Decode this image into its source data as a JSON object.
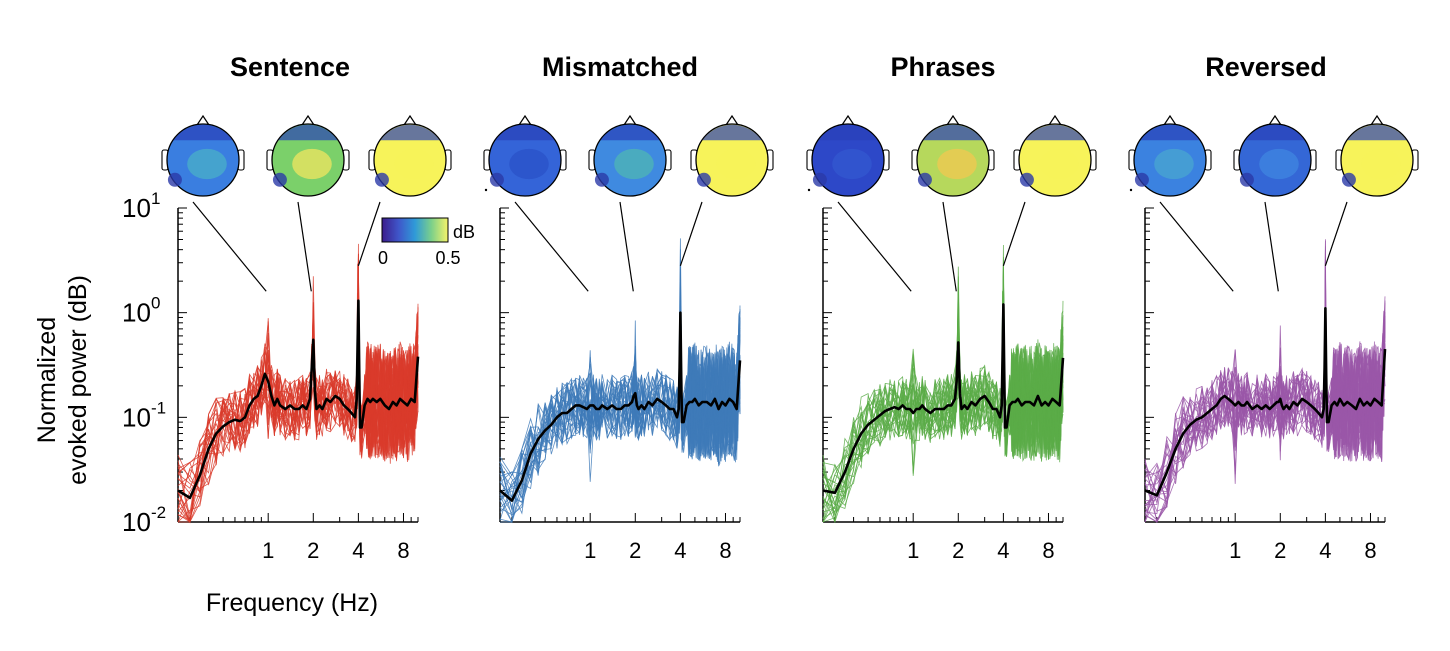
{
  "chart_data": {
    "type": "line",
    "ylabel_lines": [
      "Normalized",
      "evoked power (dB)"
    ],
    "xlabel": "Frequency (Hz)",
    "x_scale": "log",
    "y_scale": "log",
    "xlim": [
      0.25,
      10
    ],
    "ylim": [
      0.01,
      10
    ],
    "x_ticks": [
      1,
      2,
      4,
      8
    ],
    "x_tick_labels": [
      "1",
      "2",
      "4",
      "8"
    ],
    "y_ticks": [
      {
        "value": 10,
        "base": "10",
        "exp": "1"
      },
      {
        "value": 1,
        "base": "10",
        "exp": "0"
      },
      {
        "value": 0.1,
        "base": "10",
        "exp": "-1"
      },
      {
        "value": 0.01,
        "base": "10",
        "exp": "-2"
      }
    ],
    "colorbar": {
      "unit": "dB",
      "min_label": "0",
      "max_label": "0.5",
      "colormap": "viridis"
    },
    "topography_frequencies_hz": [
      1,
      2,
      4
    ],
    "panels": [
      {
        "title": "Sentence",
        "color": "#d93b2b",
        "mean_series": {
          "x": [
            0.25,
            0.3,
            0.35,
            0.4,
            0.45,
            0.5,
            0.55,
            0.6,
            0.65,
            0.7,
            0.75,
            0.8,
            0.85,
            0.9,
            0.95,
            1.0,
            1.05,
            1.1,
            1.15,
            1.2,
            1.3,
            1.4,
            1.5,
            1.6,
            1.7,
            1.8,
            1.9,
            1.95,
            2.0,
            2.05,
            2.1,
            2.2,
            2.3,
            2.45,
            2.6,
            2.8,
            3.0,
            3.2,
            3.4,
            3.6,
            3.8,
            3.9,
            3.95,
            4.0,
            4.05,
            4.1,
            4.2,
            4.4,
            4.6,
            4.8,
            5.0,
            5.3,
            5.6,
            6.0,
            6.4,
            6.8,
            7.2,
            7.6,
            8.0,
            8.5,
            9.0,
            9.5,
            10.0
          ],
          "y": [
            0.02,
            0.017,
            0.028,
            0.05,
            0.07,
            0.082,
            0.09,
            0.095,
            0.092,
            0.1,
            0.13,
            0.15,
            0.16,
            0.2,
            0.26,
            0.22,
            0.16,
            0.13,
            0.15,
            0.13,
            0.12,
            0.13,
            0.12,
            0.12,
            0.13,
            0.12,
            0.15,
            0.28,
            0.55,
            0.18,
            0.12,
            0.13,
            0.12,
            0.15,
            0.14,
            0.16,
            0.15,
            0.13,
            0.12,
            0.11,
            0.1,
            0.15,
            0.5,
            1.3,
            0.3,
            0.08,
            0.08,
            0.13,
            0.15,
            0.14,
            0.15,
            0.14,
            0.15,
            0.13,
            0.12,
            0.14,
            0.13,
            0.15,
            0.14,
            0.13,
            0.15,
            0.14,
            0.38
          ]
        }
      },
      {
        "title": "Mismatched",
        "color": "#3e7ab8",
        "mean_series": {
          "x": [
            0.25,
            0.3,
            0.35,
            0.4,
            0.45,
            0.5,
            0.55,
            0.6,
            0.65,
            0.7,
            0.75,
            0.8,
            0.85,
            0.9,
            0.95,
            1.0,
            1.05,
            1.1,
            1.15,
            1.2,
            1.3,
            1.4,
            1.5,
            1.6,
            1.7,
            1.8,
            1.9,
            1.95,
            2.0,
            2.05,
            2.1,
            2.2,
            2.3,
            2.45,
            2.6,
            2.8,
            3.0,
            3.2,
            3.4,
            3.6,
            3.8,
            3.9,
            3.95,
            4.0,
            4.05,
            4.1,
            4.2,
            4.4,
            4.6,
            4.8,
            5.0,
            5.3,
            5.6,
            6.0,
            6.4,
            6.8,
            7.2,
            7.6,
            8.0,
            8.5,
            9.0,
            9.5,
            10.0
          ],
          "y": [
            0.02,
            0.016,
            0.025,
            0.045,
            0.062,
            0.075,
            0.085,
            0.1,
            0.11,
            0.11,
            0.12,
            0.13,
            0.13,
            0.125,
            0.12,
            0.13,
            0.13,
            0.12,
            0.12,
            0.13,
            0.12,
            0.13,
            0.12,
            0.12,
            0.13,
            0.13,
            0.14,
            0.16,
            0.17,
            0.13,
            0.12,
            0.13,
            0.12,
            0.14,
            0.13,
            0.15,
            0.14,
            0.13,
            0.12,
            0.12,
            0.1,
            0.12,
            0.3,
            1.0,
            0.25,
            0.09,
            0.09,
            0.13,
            0.14,
            0.14,
            0.15,
            0.13,
            0.14,
            0.14,
            0.13,
            0.15,
            0.12,
            0.14,
            0.13,
            0.15,
            0.14,
            0.12,
            0.35
          ]
        }
      },
      {
        "title": "Phrases",
        "color": "#5aac48",
        "mean_series": {
          "x": [
            0.25,
            0.3,
            0.35,
            0.4,
            0.45,
            0.5,
            0.55,
            0.6,
            0.65,
            0.7,
            0.75,
            0.8,
            0.85,
            0.9,
            0.95,
            1.0,
            1.05,
            1.1,
            1.15,
            1.2,
            1.3,
            1.4,
            1.5,
            1.6,
            1.7,
            1.8,
            1.9,
            1.95,
            2.0,
            2.05,
            2.1,
            2.2,
            2.3,
            2.45,
            2.6,
            2.8,
            3.0,
            3.2,
            3.4,
            3.6,
            3.8,
            3.9,
            3.95,
            4.0,
            4.05,
            4.1,
            4.2,
            4.4,
            4.6,
            4.8,
            5.0,
            5.3,
            5.6,
            6.0,
            6.4,
            6.8,
            7.2,
            7.6,
            8.0,
            8.5,
            9.0,
            9.5,
            10.0
          ],
          "y": [
            0.02,
            0.019,
            0.03,
            0.05,
            0.07,
            0.085,
            0.095,
            0.105,
            0.115,
            0.12,
            0.125,
            0.12,
            0.13,
            0.12,
            0.12,
            0.11,
            0.12,
            0.12,
            0.13,
            0.12,
            0.11,
            0.12,
            0.12,
            0.12,
            0.13,
            0.13,
            0.15,
            0.22,
            0.52,
            0.17,
            0.12,
            0.13,
            0.12,
            0.14,
            0.13,
            0.15,
            0.16,
            0.14,
            0.12,
            0.12,
            0.1,
            0.13,
            0.4,
            1.2,
            0.28,
            0.08,
            0.08,
            0.13,
            0.14,
            0.14,
            0.15,
            0.13,
            0.14,
            0.14,
            0.13,
            0.16,
            0.13,
            0.14,
            0.13,
            0.15,
            0.14,
            0.13,
            0.37
          ]
        }
      },
      {
        "title": "Reversed",
        "color": "#9a57a8",
        "mean_series": {
          "x": [
            0.25,
            0.3,
            0.35,
            0.4,
            0.45,
            0.5,
            0.55,
            0.6,
            0.65,
            0.7,
            0.75,
            0.8,
            0.85,
            0.9,
            0.95,
            1.0,
            1.05,
            1.1,
            1.15,
            1.2,
            1.3,
            1.4,
            1.5,
            1.6,
            1.7,
            1.8,
            1.9,
            1.95,
            2.0,
            2.05,
            2.1,
            2.2,
            2.3,
            2.45,
            2.6,
            2.8,
            3.0,
            3.2,
            3.4,
            3.6,
            3.8,
            3.9,
            3.95,
            4.0,
            4.05,
            4.1,
            4.2,
            4.4,
            4.6,
            4.8,
            5.0,
            5.3,
            5.6,
            6.0,
            6.4,
            6.8,
            7.2,
            7.6,
            8.0,
            8.5,
            9.0,
            9.5,
            10.0
          ],
          "y": [
            0.02,
            0.018,
            0.03,
            0.05,
            0.07,
            0.085,
            0.095,
            0.1,
            0.11,
            0.12,
            0.13,
            0.15,
            0.16,
            0.15,
            0.14,
            0.13,
            0.14,
            0.13,
            0.13,
            0.14,
            0.12,
            0.13,
            0.12,
            0.13,
            0.12,
            0.13,
            0.14,
            0.14,
            0.15,
            0.13,
            0.12,
            0.13,
            0.12,
            0.14,
            0.13,
            0.15,
            0.14,
            0.13,
            0.12,
            0.11,
            0.1,
            0.12,
            0.3,
            1.1,
            0.25,
            0.09,
            0.09,
            0.13,
            0.14,
            0.13,
            0.15,
            0.13,
            0.14,
            0.13,
            0.12,
            0.15,
            0.13,
            0.14,
            0.13,
            0.15,
            0.14,
            0.13,
            0.45
          ]
        }
      }
    ]
  }
}
